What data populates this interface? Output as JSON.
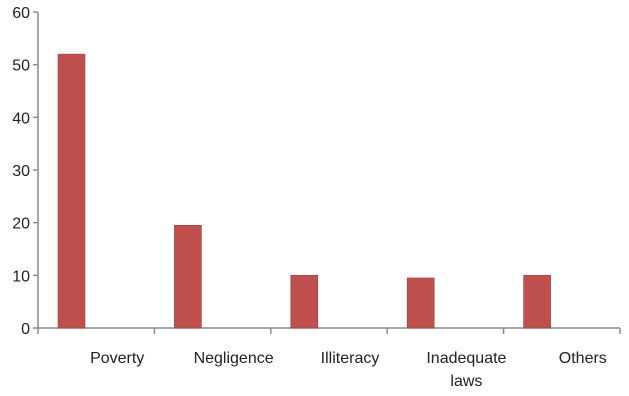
{
  "chart_data": {
    "type": "bar",
    "categories": [
      "Poverty",
      "Negligence",
      "Illiteracy",
      "Inadequate laws",
      "Others"
    ],
    "category_lines": [
      [
        "Poverty"
      ],
      [
        "Negligence"
      ],
      [
        "Illiteracy"
      ],
      [
        "Inadequate",
        "laws"
      ],
      [
        "Others"
      ]
    ],
    "values": [
      52,
      19.5,
      10,
      9.5,
      10
    ],
    "yticks": [
      "0",
      "10",
      "20",
      "30",
      "40",
      "50",
      "60"
    ],
    "ylim": [
      0,
      60
    ],
    "grid": false,
    "legend": "none",
    "title": "",
    "xlabel": "",
    "ylabel": "",
    "colors": {
      "bar": "#c0504d",
      "bar_edge": "#a03d3a",
      "axis": "#8c8c8c"
    }
  }
}
